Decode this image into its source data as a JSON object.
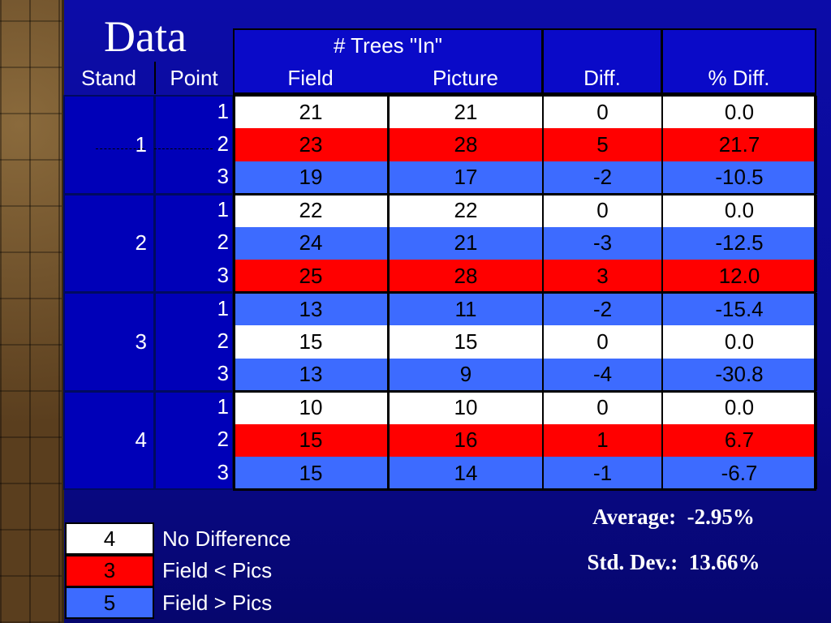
{
  "title": "Data",
  "table": {
    "header": {
      "group": "# Trees \"In\"",
      "columns": [
        "Stand",
        "Point",
        "Field",
        "Picture",
        "Diff.",
        "% Diff."
      ]
    },
    "stands": [
      {
        "label": "1",
        "rows": [
          {
            "point": "1",
            "field": "21",
            "picture": "21",
            "diff": "0",
            "pct": "0.0",
            "fill": "#ffffff"
          },
          {
            "point": "2",
            "field": "23",
            "picture": "28",
            "diff": "5",
            "pct": "21.7",
            "fill": "#ff0000"
          },
          {
            "point": "3",
            "field": "19",
            "picture": "17",
            "diff": "-2",
            "pct": "-10.5",
            "fill": "#3d6bff"
          }
        ]
      },
      {
        "label": "2",
        "rows": [
          {
            "point": "1",
            "field": "22",
            "picture": "22",
            "diff": "0",
            "pct": "0.0",
            "fill": "#ffffff"
          },
          {
            "point": "2",
            "field": "24",
            "picture": "21",
            "diff": "-3",
            "pct": "-12.5",
            "fill": "#3d6bff"
          },
          {
            "point": "3",
            "field": "25",
            "picture": "28",
            "diff": "3",
            "pct": "12.0",
            "fill": "#ff0000"
          }
        ]
      },
      {
        "label": "3",
        "rows": [
          {
            "point": "1",
            "field": "13",
            "picture": "11",
            "diff": "-2",
            "pct": "-15.4",
            "fill": "#3d6bff"
          },
          {
            "point": "2",
            "field": "15",
            "picture": "15",
            "diff": "0",
            "pct": "0.0",
            "fill": "#ffffff"
          },
          {
            "point": "3",
            "field": "13",
            "picture": "9",
            "diff": "-4",
            "pct": "-30.8",
            "fill": "#3d6bff"
          }
        ]
      },
      {
        "label": "4",
        "rows": [
          {
            "point": "1",
            "field": "10",
            "picture": "10",
            "diff": "0",
            "pct": "0.0",
            "fill": "#ffffff"
          },
          {
            "point": "2",
            "field": "15",
            "picture": "16",
            "diff": "1",
            "pct": "6.7",
            "fill": "#ff0000"
          },
          {
            "point": "3",
            "field": "15",
            "picture": "14",
            "diff": "-1",
            "pct": "-6.7",
            "fill": "#3d6bff"
          }
        ]
      }
    ]
  },
  "legend": [
    {
      "count": "4",
      "label": "No Difference",
      "fill": "#ffffff"
    },
    {
      "count": "3",
      "label": "Field < Pics",
      "fill": "#ff0000"
    },
    {
      "count": "5",
      "label": "Field > Pics",
      "fill": "#3d6bff"
    }
  ],
  "stats": {
    "average": "Average:  -2.95%",
    "std_dev": "Std. Dev.:  13.66%"
  }
}
